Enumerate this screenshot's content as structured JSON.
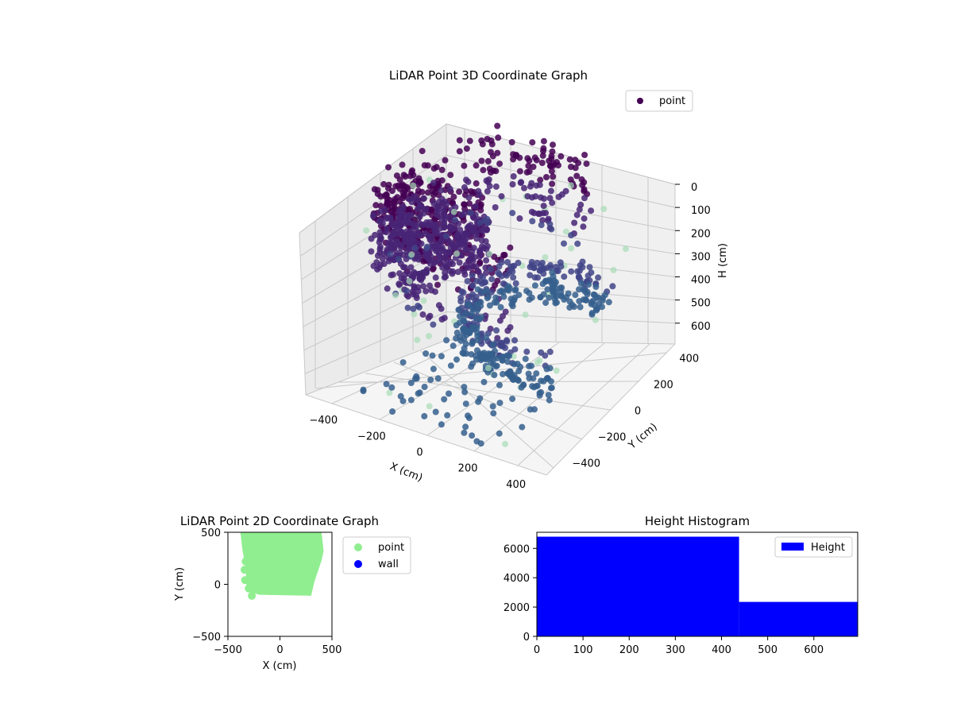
{
  "chart_data": [
    {
      "type": "scatter",
      "projection": "3d",
      "title": "LiDAR Point 3D Coordinate Graph",
      "xlabel": "X (cm)",
      "ylabel": "Y (cm)",
      "zlabel": "H (cm)",
      "xticks": [
        -400,
        -200,
        0,
        200,
        400
      ],
      "yticks": [
        -400,
        -200,
        0,
        200,
        400
      ],
      "zticks": [
        0,
        100,
        200,
        300,
        400,
        500,
        600
      ],
      "xlim": [
        -500,
        500
      ],
      "ylim": [
        -500,
        500
      ],
      "zlim": [
        0,
        690
      ],
      "z_inverted": true,
      "legend": {
        "entries": [
          "point"
        ],
        "placement": "upper-right"
      },
      "series": [
        {
          "name": "point",
          "colormap": "viridis-by-height",
          "clusters": [
            {
              "shape": "ring",
              "cx": 0,
              "cy": 100,
              "r": 450,
              "z": [
                0,
                380
              ],
              "n": 420
            },
            {
              "shape": "blob",
              "cx": -250,
              "cy": 0,
              "r": 220,
              "z": [
                60,
                330
              ],
              "n": 520
            },
            {
              "shape": "ring",
              "cx": 150,
              "cy": 150,
              "r": 330,
              "z": [
                450,
                620
              ],
              "n": 380
            },
            {
              "shape": "scatter",
              "cx": 0,
              "cy": -250,
              "r": 350,
              "z": [
                600,
                690
              ],
              "n": 70
            }
          ]
        }
      ],
      "colors": {
        "low_height": "#3a6b8c",
        "mid_height": "#3b4a8a",
        "high_height": "#440154",
        "outlier": "#a8dcb6"
      }
    },
    {
      "type": "scatter",
      "title": "LiDAR Point 2D Coordinate Graph",
      "xlabel": "X (cm)",
      "ylabel": "Y (cm)",
      "xticks": [
        -500,
        0,
        500
      ],
      "yticks": [
        -500,
        0,
        500
      ],
      "xlim": [
        -500,
        500
      ],
      "ylim": [
        -500,
        500
      ],
      "legend": {
        "entries": [
          "point",
          "wall"
        ],
        "placement": "outside-right"
      },
      "series": [
        {
          "name": "point",
          "color": "#90ee90",
          "region": [
            [
              -380,
              500
            ],
            [
              400,
              500
            ],
            [
              420,
              320
            ],
            [
              400,
              230
            ],
            [
              330,
              20
            ],
            [
              300,
              -110
            ],
            [
              -200,
              -100
            ],
            [
              -320,
              -60
            ],
            [
              -330,
              160
            ],
            [
              -360,
              330
            ],
            [
              -380,
              500
            ]
          ]
        },
        {
          "name": "wall",
          "color": "#0000ff",
          "points": []
        }
      ]
    },
    {
      "type": "bar",
      "subtype": "histogram",
      "title": "Height Histogram",
      "xticks": [
        0,
        100,
        200,
        300,
        400,
        500,
        600
      ],
      "yticks": [
        0,
        2000,
        4000,
        6000
      ],
      "xlim": [
        0,
        695
      ],
      "ylim": [
        0,
        7100
      ],
      "legend": {
        "entries": [
          "Height"
        ],
        "placement": "upper-right"
      },
      "bins": [
        {
          "x0": 0,
          "x1": 438,
          "count": 6800
        },
        {
          "x0": 438,
          "x1": 695,
          "count": 2350
        }
      ],
      "series": [
        {
          "name": "Height",
          "color": "#0000ff"
        }
      ]
    }
  ]
}
